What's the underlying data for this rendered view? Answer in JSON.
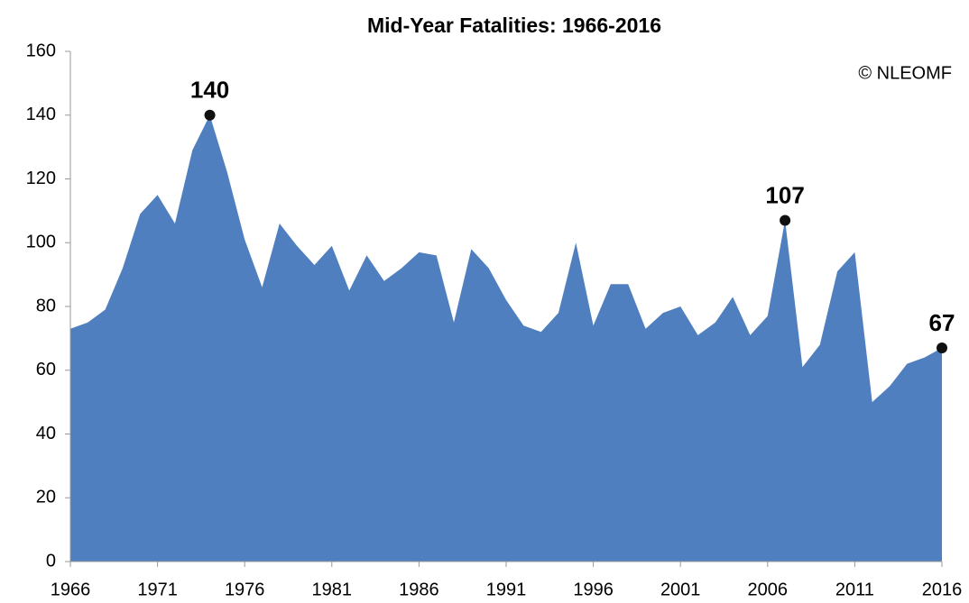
{
  "chart_data": {
    "type": "area",
    "title": "Mid-Year Fatalities: 1966-2016",
    "source": "© NLEOMF",
    "x": [
      1966,
      1967,
      1968,
      1969,
      1970,
      1971,
      1972,
      1973,
      1974,
      1975,
      1976,
      1977,
      1978,
      1979,
      1980,
      1981,
      1982,
      1983,
      1984,
      1985,
      1986,
      1987,
      1988,
      1989,
      1990,
      1991,
      1992,
      1993,
      1994,
      1995,
      1996,
      1997,
      1998,
      1999,
      2000,
      2001,
      2002,
      2003,
      2004,
      2005,
      2006,
      2007,
      2008,
      2009,
      2010,
      2011,
      2012,
      2013,
      2014,
      2015,
      2016
    ],
    "values": [
      73,
      75,
      79,
      92,
      109,
      115,
      106,
      129,
      140,
      122,
      101,
      86,
      106,
      99,
      93,
      99,
      85,
      96,
      88,
      92,
      97,
      96,
      75,
      98,
      92,
      82,
      74,
      72,
      78,
      100,
      74,
      87,
      87,
      73,
      78,
      80,
      71,
      75,
      83,
      71,
      77,
      107,
      61,
      68,
      91,
      97,
      50,
      55,
      62,
      64,
      67
    ],
    "labeled_x": [
      1974,
      2007,
      2016
    ],
    "color": "#4f7fbf",
    "xlim": [
      1966,
      2016
    ],
    "xticks": [
      1966,
      1971,
      1976,
      1981,
      1986,
      1991,
      1996,
      2001,
      2006,
      2011,
      2016
    ],
    "ylim": [
      0,
      160
    ],
    "yticks": [
      0,
      20,
      40,
      60,
      80,
      100,
      120,
      140,
      160
    ]
  }
}
